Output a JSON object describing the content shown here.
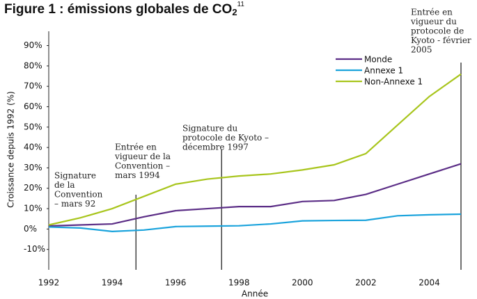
{
  "chart_data": {
    "type": "line",
    "title": "Figure 1 : émissions globales de CO",
    "title_subscript": "2",
    "title_superscript": "11",
    "x_label": "Année",
    "y_label": "Croissance depuis 1992 (%)",
    "x": [
      1992,
      1993,
      1994,
      1995,
      1996,
      1997,
      1998,
      1999,
      2000,
      2001,
      2002,
      2003,
      2004,
      2005
    ],
    "xlim": [
      1992,
      2005
    ],
    "xticks": [
      1992,
      1994,
      1996,
      1998,
      2000,
      2002,
      2004
    ],
    "ylim": [
      -20,
      97
    ],
    "yticks": [
      {
        "value": -10,
        "label": "-10%"
      },
      {
        "value": 0,
        "label": "0%"
      },
      {
        "value": 10,
        "label": "10%"
      },
      {
        "value": 20,
        "label": "20%"
      },
      {
        "value": 30,
        "label": "30%"
      },
      {
        "value": 40,
        "label": "40%"
      },
      {
        "value": 50,
        "label": "50%"
      },
      {
        "value": 60,
        "label": "60%"
      },
      {
        "value": 70,
        "label": "70%"
      },
      {
        "value": 80,
        "label": "80%"
      },
      {
        "value": 90,
        "label": "90%"
      }
    ],
    "series": [
      {
        "name": "Monde",
        "color": "#5b2d86",
        "values": [
          1.5,
          2,
          2.5,
          6,
          9,
          10,
          11,
          11,
          13.5,
          14,
          17,
          22,
          27,
          32
        ]
      },
      {
        "name": "Annexe 1",
        "color": "#1aa3dc",
        "values": [
          1,
          0.5,
          -1.2,
          -0.5,
          1.2,
          1.4,
          1.6,
          2.5,
          4,
          4.2,
          4.3,
          6.5,
          7,
          7.3
        ]
      },
      {
        "name": "Non-Annexe 1",
        "color": "#a8c51c",
        "values": [
          2,
          5.5,
          10,
          16,
          22,
          24.5,
          26,
          27,
          29,
          31.5,
          37,
          51,
          65,
          76
        ]
      }
    ],
    "annotations": [
      {
        "x": 1994.75,
        "text": [
          "Signature",
          "de la",
          "Convention",
          "– mars 92"
        ]
      },
      {
        "x": 1994.75,
        "text": [
          "Entrée en",
          "vigueur de la",
          "Convention –",
          "mars 1994"
        ]
      },
      {
        "x": 1997.45,
        "text": [
          "Signature du",
          "protocole de Kyoto –",
          "décembre 1997"
        ]
      },
      {
        "x": 2005,
        "text": [
          "Entrée en",
          "vigueur du",
          "protocole de",
          "Kyoto - février",
          "2005"
        ]
      }
    ]
  }
}
